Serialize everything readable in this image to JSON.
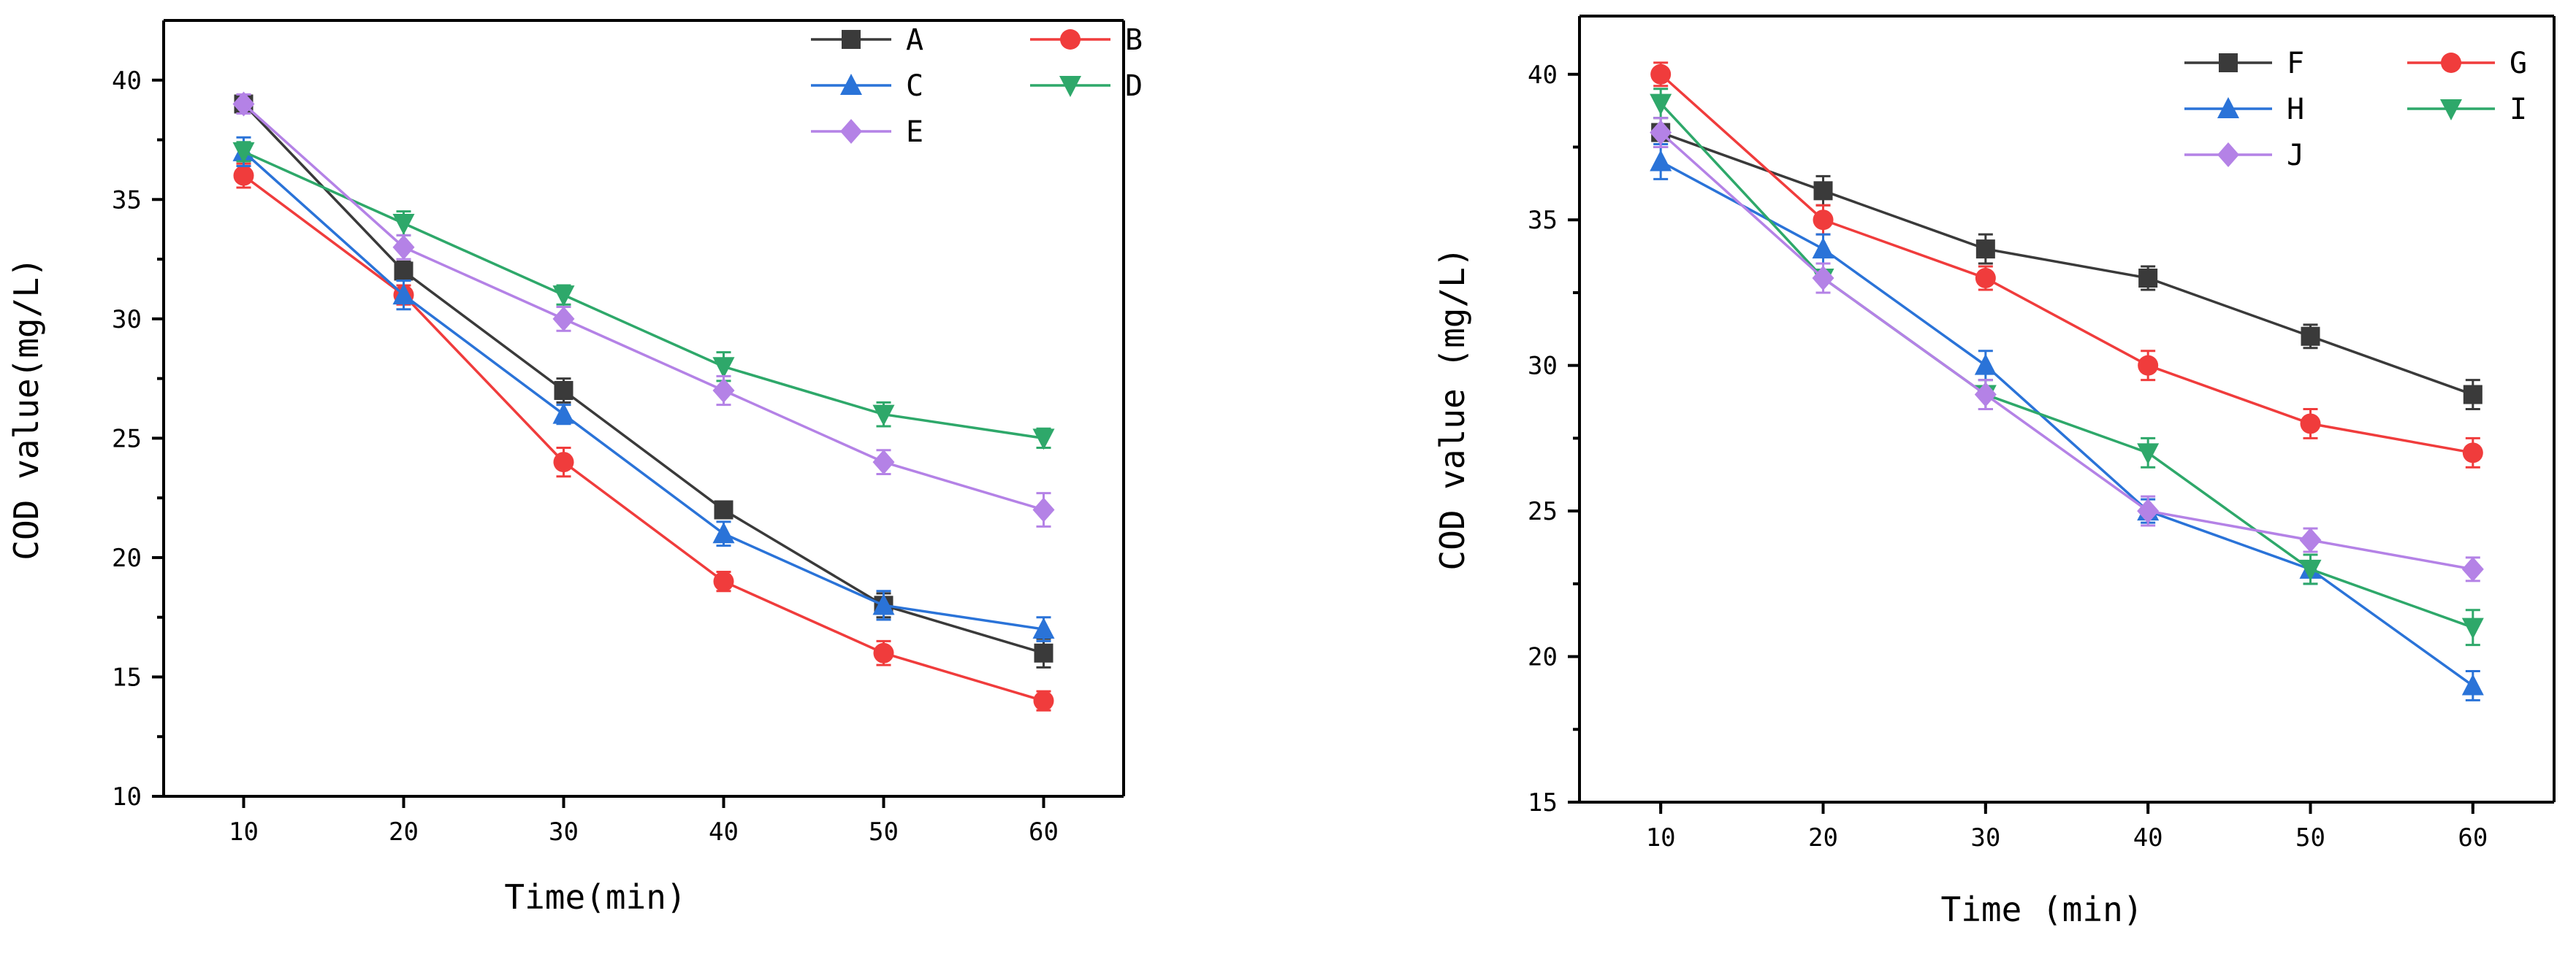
{
  "chart_data": [
    {
      "type": "line",
      "xlabel": "Time(min)",
      "ylabel": "COD value(mg/L)",
      "xlim": [
        5,
        65
      ],
      "ylim": [
        10,
        42.5
      ],
      "xticks": [
        10,
        20,
        30,
        40,
        50,
        60
      ],
      "yticks": [
        10,
        15,
        20,
        25,
        30,
        35,
        40
      ],
      "legend_position": "top-right",
      "x": [
        10,
        20,
        30,
        40,
        50,
        60
      ],
      "series": [
        {
          "name": "A",
          "color": "#3a3a3a",
          "marker": "square",
          "values": [
            39,
            32,
            27,
            22,
            18,
            16
          ],
          "errors": [
            0.3,
            0.4,
            0.5,
            0.3,
            0.5,
            0.6
          ]
        },
        {
          "name": "B",
          "color": "#f03c3c",
          "marker": "circle",
          "values": [
            36,
            31,
            24,
            19,
            16,
            14
          ],
          "errors": [
            0.5,
            0.4,
            0.6,
            0.4,
            0.5,
            0.4
          ]
        },
        {
          "name": "C",
          "color": "#2a73d8",
          "marker": "triangle-up",
          "values": [
            37,
            31,
            26,
            21,
            18,
            17
          ],
          "errors": [
            0.6,
            0.6,
            0.4,
            0.5,
            0.6,
            0.5
          ]
        },
        {
          "name": "D",
          "color": "#2ea86a",
          "marker": "triangle-down",
          "values": [
            37,
            34,
            31,
            28,
            26,
            25
          ],
          "errors": [
            0.4,
            0.5,
            0.4,
            0.6,
            0.5,
            0.4
          ]
        },
        {
          "name": "E",
          "color": "#b482e6",
          "marker": "diamond",
          "values": [
            39,
            33,
            30,
            27,
            24,
            22
          ],
          "errors": [
            0.4,
            0.5,
            0.5,
            0.6,
            0.5,
            0.7
          ]
        }
      ]
    },
    {
      "type": "line",
      "xlabel": "Time (min)",
      "ylabel": "COD value (mg/L)",
      "xlim": [
        5,
        65
      ],
      "ylim": [
        15,
        42
      ],
      "xticks": [
        10,
        20,
        30,
        40,
        50,
        60
      ],
      "yticks": [
        15,
        20,
        25,
        30,
        35,
        40
      ],
      "legend_position": "top-right",
      "x": [
        10,
        20,
        30,
        40,
        50,
        60
      ],
      "series": [
        {
          "name": "F",
          "color": "#3a3a3a",
          "marker": "square",
          "values": [
            38,
            36,
            34,
            33,
            31,
            29
          ],
          "errors": [
            0.5,
            0.5,
            0.5,
            0.4,
            0.4,
            0.5
          ]
        },
        {
          "name": "G",
          "color": "#f03c3c",
          "marker": "circle",
          "values": [
            40,
            35,
            33,
            30,
            28,
            27
          ],
          "errors": [
            0.4,
            0.5,
            0.4,
            0.5,
            0.5,
            0.5
          ]
        },
        {
          "name": "H",
          "color": "#2a73d8",
          "marker": "triangle-up",
          "values": [
            37,
            34,
            30,
            25,
            23,
            19
          ],
          "errors": [
            0.6,
            0.5,
            0.5,
            0.4,
            0.5,
            0.5
          ]
        },
        {
          "name": "I",
          "color": "#2ea86a",
          "marker": "triangle-down",
          "values": [
            39,
            33,
            29,
            27,
            23,
            21
          ],
          "errors": [
            0.5,
            0.5,
            0.5,
            0.5,
            0.5,
            0.6
          ]
        },
        {
          "name": "J",
          "color": "#b482e6",
          "marker": "diamond",
          "values": [
            38,
            33,
            29,
            25,
            24,
            23
          ],
          "errors": [
            0.5,
            0.5,
            0.5,
            0.5,
            0.4,
            0.4
          ]
        }
      ]
    }
  ]
}
